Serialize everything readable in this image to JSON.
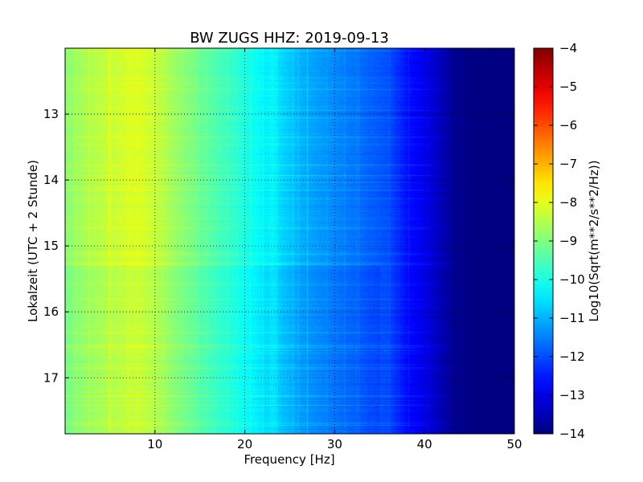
{
  "chart_data": {
    "type": "heatmap",
    "title": "BW ZUGS HHZ: 2019-09-13",
    "xlabel": "Frequency [Hz]",
    "ylabel": "Lokalzeit (UTC + 2 Stunde)",
    "xlim": [
      0,
      50
    ],
    "ylim": [
      12.0,
      17.85
    ],
    "y_inverted": true,
    "grid": true,
    "colormap": "jet",
    "x_ticks": [
      10,
      20,
      30,
      40,
      50
    ],
    "y_ticks": [
      13,
      14,
      15,
      16,
      17
    ],
    "colorbar": {
      "label": "Log10(Sqrt(m**2/s**2/Hz))",
      "range": [
        -14,
        -4
      ],
      "ticks": [
        -4,
        -5,
        -6,
        -7,
        -8,
        -9,
        -10,
        -11,
        -12,
        -13,
        -14
      ]
    },
    "spectrum_profile": {
      "frequency_hz": [
        0,
        2,
        5,
        8,
        10,
        12,
        15,
        18,
        20,
        22,
        24,
        26,
        28,
        30,
        32,
        34,
        36,
        37,
        38,
        40,
        41,
        42,
        43,
        45,
        50
      ],
      "log10_amplitude": [
        -8.9,
        -8.6,
        -8.3,
        -8.1,
        -8.3,
        -8.7,
        -9.2,
        -9.7,
        -10.0,
        -10.3,
        -10.6,
        -11.0,
        -11.2,
        -11.4,
        -11.6,
        -11.8,
        -12.0,
        -12.3,
        -12.6,
        -12.9,
        -13.2,
        -13.5,
        -13.8,
        -13.95,
        -14.0
      ]
    }
  }
}
